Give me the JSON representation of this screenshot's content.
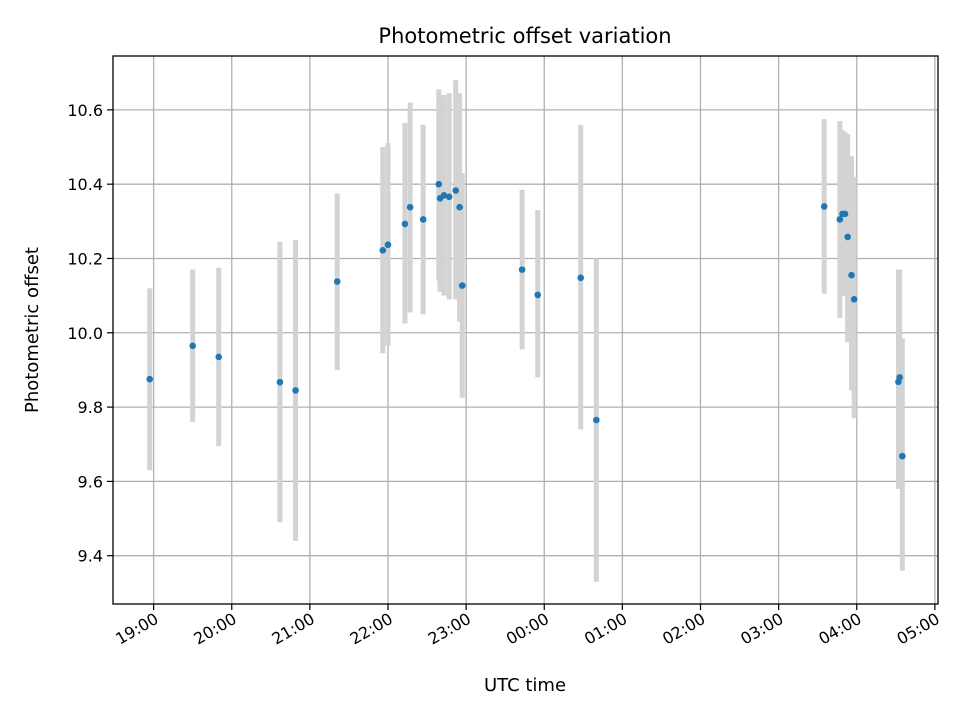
{
  "chart_data": {
    "type": "scatter",
    "title": "Photometric offset variation",
    "xlabel": "UTC time",
    "ylabel": "Photometric offset",
    "x_axis": "time (hours after 00:00 of first night; values >24 are next day)",
    "xlim": [
      18.48,
      29.04
    ],
    "ylim": [
      9.27,
      10.745
    ],
    "grid": true,
    "colors": {
      "point": "#1f77b4",
      "errorbar": "#d3d3d3",
      "grid": "#b0b0b0"
    },
    "x_ticks": [
      {
        "v": 19,
        "label": "19:00"
      },
      {
        "v": 20,
        "label": "20:00"
      },
      {
        "v": 21,
        "label": "21:00"
      },
      {
        "v": 22,
        "label": "22:00"
      },
      {
        "v": 23,
        "label": "23:00"
      },
      {
        "v": 24,
        "label": "00:00"
      },
      {
        "v": 25,
        "label": "01:00"
      },
      {
        "v": 26,
        "label": "02:00"
      },
      {
        "v": 27,
        "label": "03:00"
      },
      {
        "v": 28,
        "label": "04:00"
      },
      {
        "v": 29,
        "label": "05:00"
      }
    ],
    "y_ticks": [
      {
        "v": 9.4,
        "label": "9.4"
      },
      {
        "v": 9.6,
        "label": "9.6"
      },
      {
        "v": 9.8,
        "label": "9.8"
      },
      {
        "v": 10.0,
        "label": "10.0"
      },
      {
        "v": 10.2,
        "label": "10.2"
      },
      {
        "v": 10.4,
        "label": "10.4"
      },
      {
        "v": 10.6,
        "label": "10.6"
      }
    ],
    "points": [
      {
        "time": "18:57",
        "y": 9.875,
        "lo": 9.63,
        "hi": 10.12
      },
      {
        "time": "19:30",
        "y": 9.965,
        "lo": 9.76,
        "hi": 10.17
      },
      {
        "time": "19:50",
        "y": 9.935,
        "lo": 9.695,
        "hi": 10.175
      },
      {
        "time": "20:37",
        "y": 9.867,
        "lo": 9.49,
        "hi": 10.245
      },
      {
        "time": "20:49",
        "y": 9.845,
        "lo": 9.44,
        "hi": 10.25
      },
      {
        "time": "21:21",
        "y": 10.138,
        "lo": 9.9,
        "hi": 10.375
      },
      {
        "time": "21:56",
        "y": 10.222,
        "lo": 9.945,
        "hi": 10.5
      },
      {
        "time": "22:00",
        "y": 10.237,
        "lo": 9.965,
        "hi": 10.51
      },
      {
        "time": "22:13",
        "y": 10.293,
        "lo": 10.025,
        "hi": 10.565
      },
      {
        "time": "22:17",
        "y": 10.338,
        "lo": 10.055,
        "hi": 10.62
      },
      {
        "time": "22:27",
        "y": 10.305,
        "lo": 10.05,
        "hi": 10.56
      },
      {
        "time": "22:39",
        "y": 10.4,
        "lo": 10.14,
        "hi": 10.655
      },
      {
        "time": "22:40",
        "y": 10.362,
        "lo": 10.11,
        "hi": 10.64
      },
      {
        "time": "22:43",
        "y": 10.37,
        "lo": 10.1,
        "hi": 10.64
      },
      {
        "time": "22:47",
        "y": 10.366,
        "lo": 10.09,
        "hi": 10.645
      },
      {
        "time": "22:52",
        "y": 10.383,
        "lo": 10.09,
        "hi": 10.68
      },
      {
        "time": "22:55",
        "y": 10.338,
        "lo": 10.03,
        "hi": 10.645
      },
      {
        "time": "22:57",
        "y": 10.127,
        "lo": 9.825,
        "hi": 10.43
      },
      {
        "time": "23:43",
        "y": 10.17,
        "lo": 9.955,
        "hi": 10.385
      },
      {
        "time": "23:55",
        "y": 10.102,
        "lo": 9.88,
        "hi": 10.33
      },
      {
        "time": "00:28",
        "y": 10.148,
        "lo": 9.74,
        "hi": 10.56
      },
      {
        "time": "00:40",
        "y": 9.765,
        "lo": 9.33,
        "hi": 10.2
      },
      {
        "time": "03:35",
        "y": 10.34,
        "lo": 10.105,
        "hi": 10.575
      },
      {
        "time": "03:47",
        "y": 10.305,
        "lo": 10.04,
        "hi": 10.57
      },
      {
        "time": "03:49",
        "y": 10.32,
        "lo": 10.1,
        "hi": 10.545
      },
      {
        "time": "03:51",
        "y": 10.32,
        "lo": 10.1,
        "hi": 10.54
      },
      {
        "time": "03:53",
        "y": 10.258,
        "lo": 9.975,
        "hi": 10.535
      },
      {
        "time": "03:56",
        "y": 10.155,
        "lo": 9.845,
        "hi": 10.475
      },
      {
        "time": "03:58",
        "y": 10.09,
        "lo": 9.77,
        "hi": 10.42
      },
      {
        "time": "04:32",
        "y": 9.868,
        "lo": 9.58,
        "hi": 10.17
      },
      {
        "time": "04:33",
        "y": 9.88,
        "lo": 9.595,
        "hi": 10.17
      },
      {
        "time": "04:35",
        "y": 9.668,
        "lo": 9.36,
        "hi": 9.985
      }
    ]
  }
}
